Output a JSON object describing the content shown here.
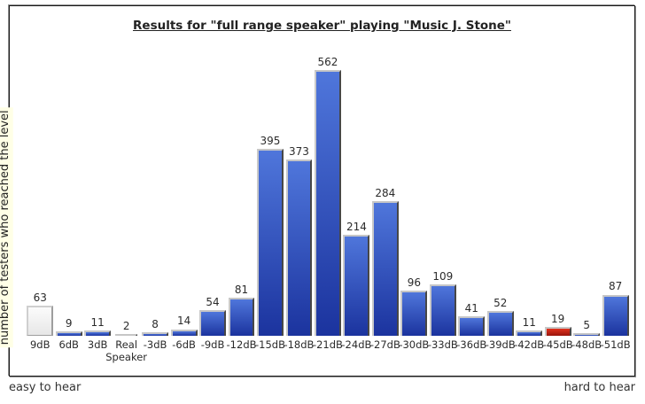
{
  "chart_data": {
    "type": "bar",
    "title": "Results for \"full range speaker\" playing \"Music J. Stone\"",
    "ylabel": "number of testers who reached the level",
    "caption_left": "easy to hear",
    "caption_right": "hard to hear",
    "categories": [
      "9dB",
      "6dB",
      "3dB",
      "Real Speaker",
      "-3dB",
      "-6dB",
      "-9dB",
      "-12dB",
      "-15dB",
      "-18dB",
      "-21dB",
      "-24dB",
      "-27dB",
      "-30dB",
      "-33dB",
      "-36dB",
      "-39dB",
      "-42dB",
      "-45dB",
      "-48dB",
      "-51dB"
    ],
    "values": [
      63,
      9,
      11,
      2,
      8,
      14,
      54,
      81,
      395,
      373,
      562,
      214,
      284,
      96,
      109,
      41,
      52,
      11,
      19,
      5,
      87
    ],
    "bar_types": [
      "white",
      "blue",
      "blue",
      "blue",
      "blue",
      "blue",
      "blue",
      "blue",
      "blue",
      "blue",
      "blue",
      "blue",
      "blue",
      "blue",
      "blue",
      "blue",
      "blue",
      "blue",
      "red",
      "blue",
      "blue"
    ],
    "ylim": [
      0,
      562
    ],
    "grid": false,
    "legend": false
  },
  "colors": {
    "blue_top": "#4f76db",
    "blue_bottom": "#1b339e",
    "red_top": "#e2331f",
    "red_bottom": "#9a140b",
    "white_top": "#fbfbfb",
    "white_bottom": "#e7e7e7",
    "ylabel_bg": "#ffffe6",
    "text": "#333333",
    "frame_border": "#1a1a1a"
  }
}
